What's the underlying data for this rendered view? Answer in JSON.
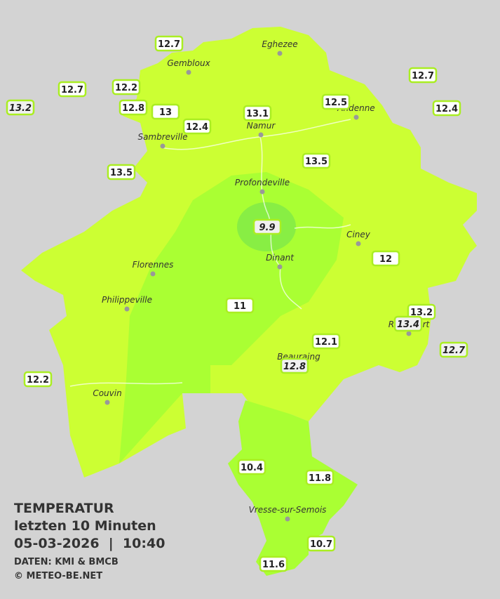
{
  "map": {
    "title": "TEMPERATUR",
    "subtitle": "letzten 10 Minuten",
    "timestamp": "05-03-2026  |  10:40",
    "source": "DATEN: KMI & BMCB",
    "copyright": "© METEO-BE.NET",
    "towns": [
      "Eghezee",
      "Gembloux",
      "Andenne",
      "Namur",
      "Sambreville",
      "Profondeville",
      "Ciney",
      "Dinant",
      "Florennes",
      "Philippeville",
      "Rochefort",
      "Beauraing",
      "Couvin",
      "Vresse-sur-Semois"
    ],
    "stations": [
      {
        "value": 12.7,
        "italic": false
      },
      {
        "value": 12.7,
        "italic": false
      },
      {
        "value": 13.2,
        "italic": true
      },
      {
        "value": 12.2,
        "italic": false
      },
      {
        "value": 12.8,
        "italic": false
      },
      {
        "value": 13.0,
        "italic": false
      },
      {
        "value": 12.4,
        "italic": false
      },
      {
        "value": 13.1,
        "italic": false
      },
      {
        "value": 12.5,
        "italic": false
      },
      {
        "value": 12.7,
        "italic": false
      },
      {
        "value": 12.4,
        "italic": false
      },
      {
        "value": 13.5,
        "italic": false
      },
      {
        "value": 13.5,
        "italic": false
      },
      {
        "value": 9.9,
        "italic": true
      },
      {
        "value": 12.0,
        "italic": false
      },
      {
        "value": 11.0,
        "italic": false
      },
      {
        "value": 13.2,
        "italic": false
      },
      {
        "value": 13.4,
        "italic": true
      },
      {
        "value": 12.1,
        "italic": false
      },
      {
        "value": 12.7,
        "italic": true
      },
      {
        "value": 12.8,
        "italic": true
      },
      {
        "value": 12.2,
        "italic": false
      },
      {
        "value": 10.4,
        "italic": false
      },
      {
        "value": 11.8,
        "italic": false
      },
      {
        "value": 10.7,
        "italic": false
      },
      {
        "value": 11.6,
        "italic": false
      }
    ]
  }
}
